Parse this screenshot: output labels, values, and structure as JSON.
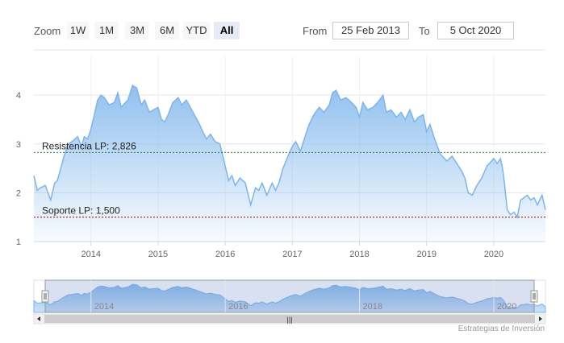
{
  "toolbar": {
    "zoom_label": "Zoom",
    "zoom_buttons": [
      "1W",
      "1M",
      "3M",
      "6M",
      "YTD",
      "All"
    ],
    "active_zoom": "All",
    "from_label": "From",
    "from_value": "25 Feb 2013",
    "to_label": "To",
    "to_value": "5 Oct 2020"
  },
  "credit": "Estrategias de Inversión",
  "colors": {
    "series_line": "#7cb5ec",
    "resistance_line": "#2e7d32",
    "support_line": "#8b0000",
    "navigator_fill": "#a9c6ea"
  },
  "chart_data": {
    "type": "area",
    "title": "",
    "xlabel": "",
    "ylabel": "",
    "ylim": [
      1,
      4.3
    ],
    "yticks": [
      1,
      2,
      3,
      4
    ],
    "xticks": [
      "2014",
      "2015",
      "2016",
      "2017",
      "2018",
      "2019",
      "2020"
    ],
    "xlim": [
      2013.15,
      2020.77
    ],
    "grid": true,
    "series": [
      {
        "x": [
          2013.15,
          2013.2,
          2013.25,
          2013.32,
          2013.4,
          2013.46,
          2013.5,
          2013.55,
          2013.6,
          2013.66,
          2013.72,
          2013.8,
          2013.86,
          2013.9,
          2013.95,
          2014.0,
          2014.05,
          2014.1,
          2014.15,
          2014.2,
          2014.27,
          2014.35,
          2014.4,
          2014.45,
          2014.55,
          2014.62,
          2014.68,
          2014.75,
          2014.8,
          2014.87,
          2014.93,
          2015.0,
          2015.05,
          2015.1,
          2015.15,
          2015.22,
          2015.3,
          2015.35,
          2015.42,
          2015.5,
          2015.6,
          2015.65,
          2015.72,
          2015.78,
          2015.85,
          2015.92,
          2016.0,
          2016.05,
          2016.1,
          2016.15,
          2016.22,
          2016.3,
          2016.38,
          2016.45,
          2016.5,
          2016.55,
          2016.62,
          2016.7,
          2016.75,
          2016.8,
          2016.86,
          2016.92,
          2017.0,
          2017.05,
          2017.12,
          2017.2,
          2017.25,
          2017.32,
          2017.4,
          2017.47,
          2017.55,
          2017.6,
          2017.65,
          2017.72,
          2017.8,
          2017.88,
          2017.95,
          2018.0,
          2018.05,
          2018.12,
          2018.2,
          2018.27,
          2018.35,
          2018.4,
          2018.47,
          2018.55,
          2018.62,
          2018.68,
          2018.75,
          2018.82,
          2018.88,
          2018.95,
          2019.0,
          2019.05,
          2019.12,
          2019.2,
          2019.3,
          2019.38,
          2019.45,
          2019.52,
          2019.57,
          2019.62,
          2019.68,
          2019.75,
          2019.82,
          2019.9,
          2020.0,
          2020.05,
          2020.1,
          2020.13,
          2020.16,
          2020.2,
          2020.25,
          2020.3,
          2020.35,
          2020.4,
          2020.45,
          2020.5,
          2020.55,
          2020.6,
          2020.65,
          2020.72,
          2020.77
        ],
        "values": [
          2.35,
          2.05,
          2.1,
          2.15,
          1.85,
          2.2,
          2.25,
          2.5,
          2.75,
          3.0,
          3.05,
          3.15,
          2.95,
          3.15,
          3.1,
          3.3,
          3.6,
          3.9,
          4.0,
          3.95,
          3.8,
          3.85,
          4.05,
          3.75,
          3.9,
          4.2,
          4.15,
          3.8,
          3.9,
          3.65,
          3.7,
          3.75,
          3.5,
          3.45,
          3.6,
          3.85,
          3.95,
          3.8,
          3.9,
          3.7,
          3.45,
          3.3,
          3.1,
          3.2,
          3.05,
          3.0,
          2.55,
          2.25,
          2.35,
          2.15,
          2.3,
          2.2,
          1.75,
          2.1,
          2.05,
          2.2,
          1.95,
          2.2,
          2.05,
          2.2,
          2.5,
          2.7,
          2.95,
          3.05,
          2.85,
          3.2,
          3.4,
          3.6,
          3.75,
          3.65,
          3.8,
          4.05,
          4.1,
          3.9,
          3.95,
          3.85,
          3.75,
          3.55,
          3.85,
          3.7,
          3.75,
          3.85,
          4.0,
          3.65,
          3.7,
          3.55,
          3.65,
          3.5,
          3.7,
          3.45,
          3.55,
          3.6,
          3.25,
          3.4,
          3.1,
          2.8,
          2.65,
          2.75,
          2.6,
          2.45,
          2.3,
          2.0,
          1.95,
          2.15,
          2.3,
          2.55,
          2.7,
          2.6,
          2.7,
          2.5,
          2.2,
          1.65,
          1.55,
          1.6,
          1.5,
          1.85,
          1.9,
          1.95,
          1.85,
          1.9,
          1.75,
          1.95,
          1.65
        ]
      }
    ],
    "annotations": [
      {
        "name": "resistance",
        "label": "Resistencia LP: 2,826",
        "value": 2.826
      },
      {
        "name": "support",
        "label": "Soporte LP: 1,500",
        "value": 1.5
      }
    ],
    "navigator": {
      "xticks": [
        "2014",
        "2016",
        "2018",
        "2020"
      ],
      "scrollbar_grip": "|||"
    }
  }
}
